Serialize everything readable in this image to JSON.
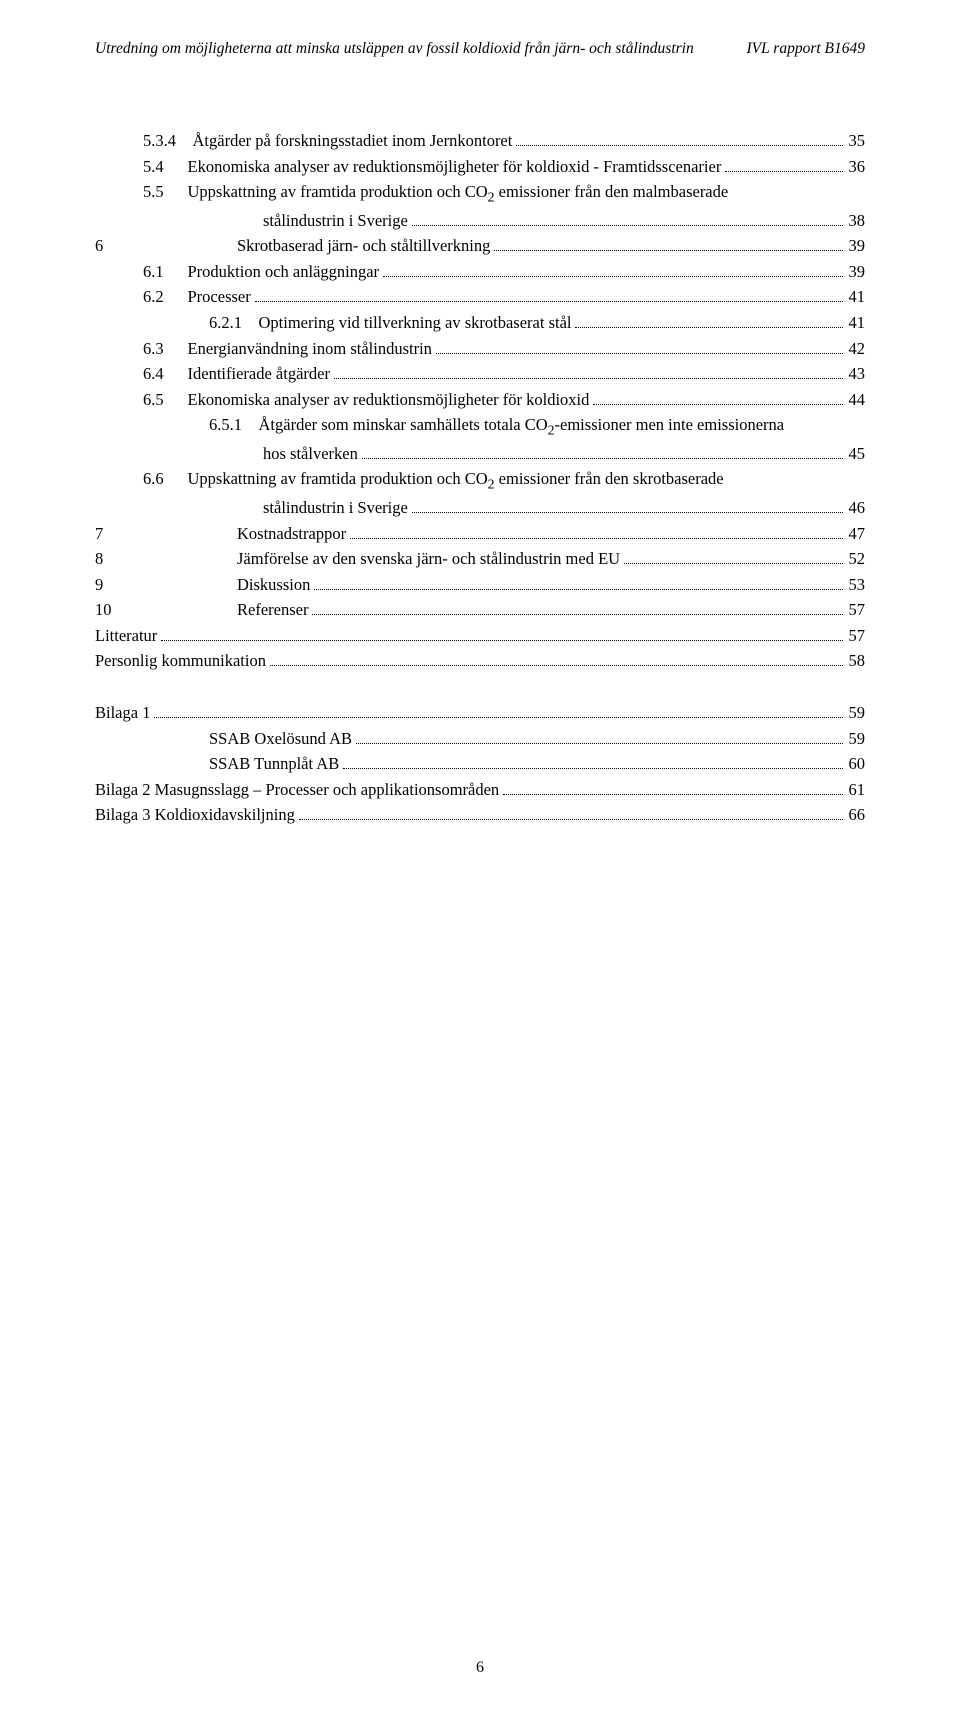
{
  "header": {
    "left": "Utredning om möjligheterna att minska utsläppen av fossil koldioxid från järn- och stålindustrin",
    "right": "IVL rapport B1649"
  },
  "toc": [
    {
      "indent": "indent-1",
      "num": "5.3.4",
      "label": "Åtgärder på forskningsstadiet inom Jernkontoret",
      "page": "35"
    },
    {
      "indent": "indent-1",
      "num": "5.4",
      "label": "Ekonomiska analyser av reduktionsmöjligheter för koldioxid - Framtidsscenarier",
      "page": "36"
    },
    {
      "indent": "indent-1",
      "num": "5.5",
      "label": "Uppskattning av framtida produktion och CO",
      "sub": "2",
      "label2": " emissioner från den malmbaserade",
      "cont": "stålindustrin i Sverige",
      "page": "38"
    },
    {
      "indent": "",
      "num": "6",
      "label": "Skrotbaserad järn- och ståltillverkning",
      "page": "39",
      "chapter": true
    },
    {
      "indent": "indent-1",
      "num": "6.1",
      "label": "Produktion och anläggningar",
      "page": "39"
    },
    {
      "indent": "indent-1",
      "num": "6.2",
      "label": "Processer",
      "page": "41"
    },
    {
      "indent": "indent-2",
      "num": "6.2.1",
      "label": "Optimering vid tillverkning av skrotbaserat stål",
      "page": "41"
    },
    {
      "indent": "indent-1",
      "num": "6.3",
      "label": "Energianvändning inom stålindustrin",
      "page": "42"
    },
    {
      "indent": "indent-1",
      "num": "6.4",
      "label": "Identifierade åtgärder",
      "page": "43"
    },
    {
      "indent": "indent-1",
      "num": "6.5",
      "label": "Ekonomiska analyser av reduktionsmöjligheter för koldioxid",
      "page": "44"
    },
    {
      "indent": "indent-2",
      "num": "6.5.1",
      "label": "Åtgärder som minskar samhällets totala CO",
      "sub": "2",
      "label2": "-emissioner men inte emissionerna",
      "cont": "hos stålverken",
      "page": "45",
      "contIndent": "indent-3"
    },
    {
      "indent": "indent-1",
      "num": "6.6",
      "label": "Uppskattning av framtida produktion och CO",
      "sub": "2",
      "label2": " emissioner från den skrotbaserade",
      "cont": "stålindustrin i Sverige",
      "page": "46"
    },
    {
      "indent": "",
      "num": "7",
      "label": "Kostnadstrappor",
      "page": "47",
      "chapter": true
    },
    {
      "indent": "",
      "num": "8",
      "label": "Jämförelse av den svenska järn- och stålindustrin med EU",
      "page": "52",
      "chapter": true
    },
    {
      "indent": "",
      "num": "9",
      "label": "Diskussion",
      "page": "53",
      "chapter": true
    },
    {
      "indent": "",
      "num": "10",
      "label": "Referenser",
      "page": "57",
      "chapter": true
    },
    {
      "indent": "",
      "num": "",
      "label": "Litteratur",
      "page": "57",
      "plain": true
    },
    {
      "indent": "",
      "num": "",
      "label": "Personlig kommunikation",
      "page": "58",
      "plain": true
    }
  ],
  "toc2": [
    {
      "indent": "",
      "num": "",
      "label": "Bilaga 1",
      "page": "59",
      "plain": true
    },
    {
      "indent": "indent-0-label",
      "num": "",
      "label": "SSAB Oxelösund AB",
      "page": "59"
    },
    {
      "indent": "indent-0-label",
      "num": "",
      "label": "SSAB Tunnplåt AB",
      "page": "60"
    },
    {
      "indent": "",
      "num": "",
      "label": "Bilaga 2 Masugnsslagg – Processer och applikationsområden",
      "page": "61",
      "plain": true
    },
    {
      "indent": "",
      "num": "",
      "label": "Bilaga 3 Koldioxidavskiljning",
      "page": "66",
      "plain": true
    }
  ],
  "footer": "6"
}
